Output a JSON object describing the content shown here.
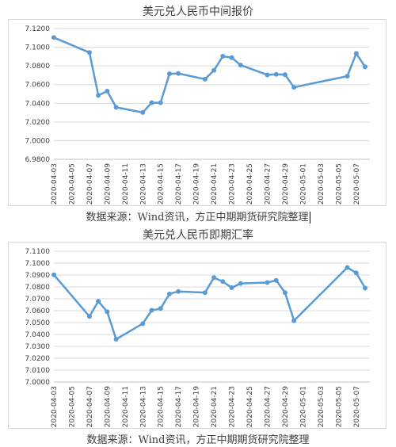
{
  "chart_data": [
    {
      "type": "line",
      "title": "美元兑人民币中间报价",
      "source": "数据来源：Wind资讯，方正中期期货研究院整理",
      "ylim": [
        6.98,
        7.12
      ],
      "ytick_step": 0.02,
      "ytick_labels": [
        "7.1200",
        "7.1000",
        "7.0800",
        "7.0600",
        "7.0400",
        "7.0200",
        "7.0000",
        "6.9800"
      ],
      "grid": true,
      "color": "#5b9bd5",
      "x_dates": [
        "2020-04-03",
        "2020-04-05",
        "2020-04-07",
        "2020-04-09",
        "2020-04-11",
        "2020-04-13",
        "2020-04-15",
        "2020-04-17",
        "2020-04-19",
        "2020-04-21",
        "2020-04-23",
        "2020-04-25",
        "2020-04-27",
        "2020-04-29",
        "2020-05-01",
        "2020-05-03",
        "2020-05-05",
        "2020-05-07"
      ],
      "x_start": "2020-04-03",
      "x_end": "2020-05-08",
      "series": [
        {
          "x": [
            "2020-04-03",
            "2020-04-07",
            "2020-04-08",
            "2020-04-09",
            "2020-04-10",
            "2020-04-13",
            "2020-04-14",
            "2020-04-15",
            "2020-04-16",
            "2020-04-17",
            "2020-04-20",
            "2020-04-21",
            "2020-04-22",
            "2020-04-23",
            "2020-04-24",
            "2020-04-27",
            "2020-04-28",
            "2020-04-29",
            "2020-04-30",
            "2020-05-06",
            "2020-05-07",
            "2020-05-08"
          ],
          "values": [
            7.1104,
            7.0943,
            7.0484,
            7.053,
            7.0357,
            7.0302,
            7.0406,
            7.0406,
            7.0715,
            7.0719,
            7.0658,
            7.0752,
            7.0903,
            7.0888,
            7.0809,
            7.0704,
            7.071,
            7.0706,
            7.0571,
            7.069,
            7.0933,
            7.079
          ]
        }
      ]
    },
    {
      "type": "line",
      "title": "美元兑人民币即期汇率",
      "source": "数据来源：Wind资讯，方正中期期货研究院整理",
      "ylim": [
        7.0,
        7.11
      ],
      "ytick_step": 0.01,
      "ytick_labels": [
        "7.1100",
        "7.1000",
        "7.0900",
        "7.0800",
        "7.0700",
        "7.0600",
        "7.0500",
        "7.0400",
        "7.0300",
        "7.0200",
        "7.0100",
        "7.0000"
      ],
      "grid": true,
      "color": "#5b9bd5",
      "x_dates": [
        "2020-04-03",
        "2020-04-05",
        "2020-04-07",
        "2020-04-09",
        "2020-04-11",
        "2020-04-13",
        "2020-04-15",
        "2020-04-17",
        "2020-04-19",
        "2020-04-21",
        "2020-04-23",
        "2020-04-25",
        "2020-04-27",
        "2020-04-29",
        "2020-05-01",
        "2020-05-03",
        "2020-05-05",
        "2020-05-07"
      ],
      "x_start": "2020-04-03",
      "x_end": "2020-05-08",
      "series": [
        {
          "x": [
            "2020-04-03",
            "2020-04-07",
            "2020-04-08",
            "2020-04-09",
            "2020-04-10",
            "2020-04-13",
            "2020-04-14",
            "2020-04-15",
            "2020-04-16",
            "2020-04-17",
            "2020-04-20",
            "2020-04-21",
            "2020-04-22",
            "2020-04-23",
            "2020-04-24",
            "2020-04-27",
            "2020-04-28",
            "2020-04-29",
            "2020-04-30",
            "2020-05-06",
            "2020-05-07",
            "2020-05-08"
          ],
          "values": [
            7.0902,
            7.0552,
            7.0679,
            7.0591,
            7.036,
            7.0491,
            7.0603,
            7.0618,
            7.0741,
            7.0762,
            7.0752,
            7.0878,
            7.0845,
            7.0793,
            7.0829,
            7.0837,
            7.0855,
            7.0752,
            7.0516,
            7.0963,
            7.0918,
            7.079
          ]
        }
      ]
    }
  ]
}
